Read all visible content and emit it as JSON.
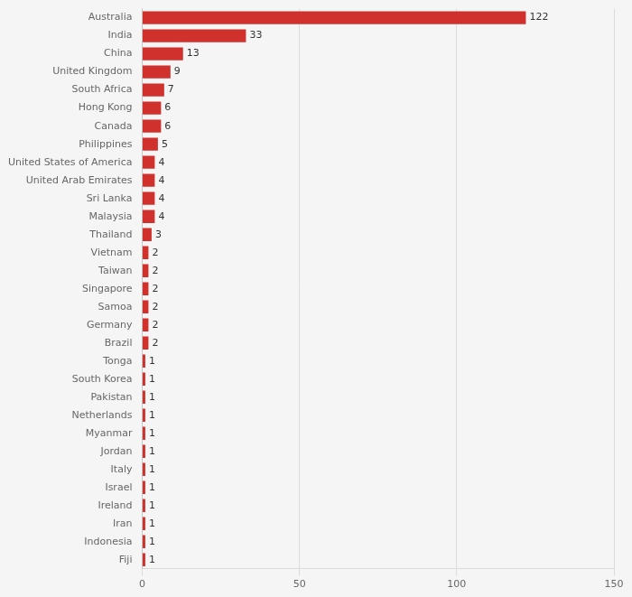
{
  "chart_data": {
    "type": "bar",
    "orientation": "horizontal",
    "categories": [
      "Australia",
      "India",
      "China",
      "United Kingdom",
      "South Africa",
      "Hong Kong",
      "Canada",
      "Philippines",
      "United States of America",
      "United Arab Emirates",
      "Sri Lanka",
      "Malaysia",
      "Thailand",
      "Vietnam",
      "Taiwan",
      "Singapore",
      "Samoa",
      "Germany",
      "Brazil",
      "Tonga",
      "South Korea",
      "Pakistan",
      "Netherlands",
      "Myanmar",
      "Jordan",
      "Italy",
      "Israel",
      "Ireland",
      "Iran",
      "Indonesia",
      "Fiji"
    ],
    "values": [
      122,
      33,
      13,
      9,
      7,
      6,
      6,
      5,
      4,
      4,
      4,
      4,
      3,
      2,
      2,
      2,
      2,
      2,
      2,
      1,
      1,
      1,
      1,
      1,
      1,
      1,
      1,
      1,
      1,
      1,
      1
    ],
    "color": "#d0312d",
    "xlim": [
      0,
      150
    ],
    "xticks": [
      0,
      50,
      100,
      150
    ],
    "grid": true,
    "data_labels": true
  }
}
